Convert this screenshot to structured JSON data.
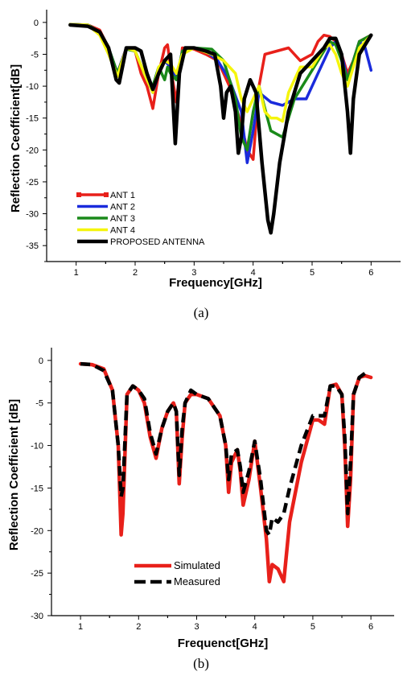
{
  "chart_data": [
    {
      "type": "line",
      "caption": "(a)",
      "xlabel": "Frequency[GHz]",
      "ylabel": "Reflection Ceofficient[dB]",
      "xlim": [
        0.5,
        6.5
      ],
      "ylim": [
        -37.5,
        2
      ],
      "xticks": [
        1,
        2,
        3,
        4,
        5,
        6
      ],
      "yticks": [
        0,
        -5,
        -10,
        -15,
        -20,
        -25,
        -30,
        -35
      ],
      "legend_position": "bottom-left",
      "series": [
        {
          "name": "ANT 1",
          "color": "#e8201a",
          "width": 3.5,
          "dash": "",
          "x": [
            0.9,
            1.2,
            1.4,
            1.55,
            1.7,
            1.85,
            2.0,
            2.1,
            2.2,
            2.3,
            2.4,
            2.5,
            2.55,
            2.6,
            2.7,
            2.8,
            3.0,
            3.2,
            3.4,
            3.6,
            3.8,
            3.9,
            4.0,
            4.1,
            4.2,
            4.4,
            4.6,
            4.8,
            5.0,
            5.1,
            5.2,
            5.3,
            5.4,
            5.5,
            5.6,
            5.7,
            5.8,
            6.0
          ],
          "y": [
            -0.3,
            -0.4,
            -1.2,
            -4,
            -8,
            -4,
            -4.5,
            -8,
            -10,
            -13.5,
            -8,
            -4,
            -3.5,
            -7,
            -12.5,
            -4,
            -4.2,
            -5,
            -6,
            -10,
            -16,
            -20,
            -21.5,
            -10,
            -5,
            -4.5,
            -4,
            -6,
            -5,
            -3,
            -2,
            -2.2,
            -3,
            -5,
            -8,
            -6,
            -3,
            -2
          ]
        },
        {
          "name": "ANT 2",
          "color": "#1a2bdc",
          "width": 3.5,
          "dash": "",
          "x": [
            0.9,
            1.2,
            1.4,
            1.55,
            1.7,
            1.85,
            2.0,
            2.2,
            2.3,
            2.4,
            2.5,
            2.6,
            2.7,
            2.8,
            3.0,
            3.2,
            3.4,
            3.6,
            3.8,
            3.9,
            4.0,
            4.1,
            4.3,
            4.5,
            4.7,
            4.9,
            5.1,
            5.3,
            5.4,
            5.5,
            5.6,
            5.7,
            5.8,
            5.9,
            6.0
          ],
          "y": [
            -0.3,
            -0.4,
            -1.5,
            -4,
            -8,
            -4,
            -4.5,
            -9,
            -11,
            -8,
            -6,
            -7,
            -9,
            -4.5,
            -4,
            -4.5,
            -6,
            -9,
            -14,
            -22,
            -17,
            -11,
            -12.5,
            -13,
            -12,
            -12,
            -8,
            -4,
            -3,
            -5,
            -9,
            -6,
            -3,
            -4,
            -7.5
          ]
        },
        {
          "name": "ANT 3",
          "color": "#1a8a1a",
          "width": 3.5,
          "dash": "",
          "x": [
            0.9,
            1.2,
            1.4,
            1.55,
            1.7,
            1.85,
            2.0,
            2.2,
            2.3,
            2.4,
            2.5,
            2.55,
            2.6,
            2.7,
            2.8,
            3.0,
            3.3,
            3.5,
            3.7,
            3.8,
            3.9,
            4.0,
            4.1,
            4.3,
            4.5,
            4.7,
            4.9,
            5.1,
            5.3,
            5.4,
            5.5,
            5.6,
            5.7,
            5.8,
            6.0
          ],
          "y": [
            -0.3,
            -0.4,
            -1.5,
            -4,
            -8,
            -4.2,
            -4.5,
            -9,
            -10,
            -7,
            -9,
            -7,
            -8,
            -9,
            -4.5,
            -4,
            -4.2,
            -6,
            -12,
            -18,
            -20,
            -14,
            -10,
            -17,
            -18,
            -12,
            -9,
            -6,
            -3,
            -3.5,
            -6,
            -9,
            -6,
            -3,
            -2
          ]
        },
        {
          "name": "ANT 4",
          "color": "#f5f50c",
          "width": 3.5,
          "dash": "",
          "x": [
            0.9,
            1.2,
            1.4,
            1.55,
            1.7,
            1.85,
            2.0,
            2.2,
            2.3,
            2.4,
            2.5,
            2.6,
            2.7,
            2.8,
            3.0,
            3.3,
            3.5,
            3.7,
            3.8,
            3.9,
            4.0,
            4.1,
            4.2,
            4.3,
            4.4,
            4.5,
            4.6,
            4.8,
            5.0,
            5.2,
            5.3,
            5.4,
            5.5,
            5.6,
            5.7,
            5.8,
            6.0
          ],
          "y": [
            -0.3,
            -0.4,
            -2,
            -5,
            -8.5,
            -4,
            -4.5,
            -9,
            -11,
            -7,
            -6,
            -6.5,
            -8,
            -5,
            -4,
            -5,
            -6,
            -8,
            -12,
            -14,
            -12,
            -10,
            -14,
            -15,
            -15,
            -15.5,
            -11,
            -7,
            -7,
            -4,
            -3.5,
            -5,
            -8,
            -10,
            -7,
            -4,
            -2
          ]
        },
        {
          "name": "PROPOSED ANTENNA",
          "color": "#000000",
          "width": 4.5,
          "dash": "",
          "x": [
            0.9,
            1.2,
            1.4,
            1.55,
            1.68,
            1.73,
            1.85,
            2.0,
            2.1,
            2.2,
            2.3,
            2.4,
            2.5,
            2.6,
            2.68,
            2.75,
            2.85,
            3.0,
            3.2,
            3.35,
            3.45,
            3.5,
            3.55,
            3.62,
            3.7,
            3.75,
            3.8,
            3.85,
            3.95,
            4.05,
            4.15,
            4.25,
            4.3,
            4.35,
            4.45,
            4.6,
            4.8,
            5.0,
            5.2,
            5.3,
            5.4,
            5.5,
            5.6,
            5.65,
            5.7,
            5.8,
            6.0
          ],
          "y": [
            -0.4,
            -0.6,
            -1.5,
            -4,
            -9,
            -9.5,
            -4,
            -4,
            -4.5,
            -8,
            -10.5,
            -8,
            -6,
            -5,
            -19,
            -8,
            -4,
            -4,
            -4.5,
            -5,
            -10,
            -15,
            -11,
            -10,
            -14,
            -20.5,
            -18,
            -12,
            -9,
            -11,
            -22,
            -31,
            -33,
            -30,
            -22,
            -14,
            -8,
            -6,
            -4,
            -2.5,
            -2.5,
            -5,
            -14,
            -20.5,
            -12,
            -5,
            -2
          ]
        }
      ]
    },
    {
      "type": "line",
      "caption": "(b)",
      "xlabel": "Frequenct[GHz]",
      "ylabel": "Reflection Coefficient [dB]",
      "xlim": [
        0.5,
        6.4
      ],
      "ylim": [
        -30,
        1.5
      ],
      "xticks": [
        1,
        2,
        3,
        4,
        5,
        6
      ],
      "yticks": [
        0,
        -5,
        -10,
        -15,
        -20,
        -25,
        -30
      ],
      "legend_position": "bottom-center",
      "series": [
        {
          "name": "Simulated",
          "color": "#e8201a",
          "width": 4.5,
          "dash": "",
          "x": [
            1.0,
            1.2,
            1.4,
            1.55,
            1.65,
            1.7,
            1.73,
            1.8,
            1.9,
            2.0,
            2.1,
            2.2,
            2.3,
            2.4,
            2.5,
            2.6,
            2.65,
            2.7,
            2.75,
            2.8,
            2.9,
            3.0,
            3.2,
            3.4,
            3.5,
            3.55,
            3.6,
            3.7,
            3.75,
            3.8,
            3.9,
            4.0,
            4.1,
            4.2,
            4.25,
            4.3,
            4.4,
            4.5,
            4.6,
            4.8,
            5.0,
            5.1,
            5.2,
            5.3,
            5.4,
            5.5,
            5.55,
            5.6,
            5.65,
            5.7,
            5.8,
            5.9,
            6.0
          ],
          "y": [
            -0.4,
            -0.5,
            -1.0,
            -3.5,
            -10,
            -20.5,
            -18,
            -4,
            -3,
            -3.5,
            -5,
            -9,
            -11.5,
            -8,
            -6,
            -5,
            -6,
            -14.5,
            -9,
            -5,
            -4,
            -4,
            -4.5,
            -6.5,
            -10,
            -15.5,
            -12,
            -10.5,
            -13,
            -17,
            -14,
            -9.5,
            -15,
            -21,
            -26,
            -24,
            -24.5,
            -26,
            -19,
            -12,
            -7,
            -7,
            -7.5,
            -3,
            -2.8,
            -4,
            -10,
            -19.5,
            -14,
            -4,
            -2,
            -1.8,
            -2
          ]
        },
        {
          "name": "Measured",
          "color": "#000000",
          "width": 4.5,
          "dash": "12,7",
          "x": [
            1.0,
            1.2,
            1.4,
            1.55,
            1.65,
            1.7,
            1.73,
            1.8,
            1.9,
            2.0,
            2.1,
            2.2,
            2.3,
            2.4,
            2.5,
            2.6,
            2.65,
            2.7,
            2.75,
            2.8,
            2.9,
            3.0,
            3.2,
            3.4,
            3.5,
            3.55,
            3.6,
            3.7,
            3.75,
            3.8,
            3.9,
            4.0,
            4.1,
            4.2,
            4.25,
            4.3,
            4.4,
            4.5,
            4.6,
            4.8,
            5.0,
            5.1,
            5.2,
            5.3,
            5.4,
            5.5,
            5.55,
            5.6,
            5.65,
            5.7,
            5.8,
            5.9
          ],
          "y": [
            -0.4,
            -0.5,
            -1.2,
            -3.5,
            -10,
            -16,
            -15,
            -4,
            -3,
            -3.5,
            -4.5,
            -8.5,
            -11,
            -8,
            -6,
            -5,
            -6,
            -13.5,
            -8,
            -5,
            -3.5,
            -4,
            -4.5,
            -6.5,
            -10,
            -14,
            -11,
            -10.5,
            -12.5,
            -15.5,
            -13,
            -9.5,
            -14,
            -20,
            -20.5,
            -18.5,
            -19,
            -18,
            -15,
            -10,
            -6.5,
            -6.5,
            -6.5,
            -3,
            -3,
            -4,
            -9,
            -18,
            -12,
            -4,
            -2,
            -1.5
          ]
        }
      ]
    }
  ]
}
